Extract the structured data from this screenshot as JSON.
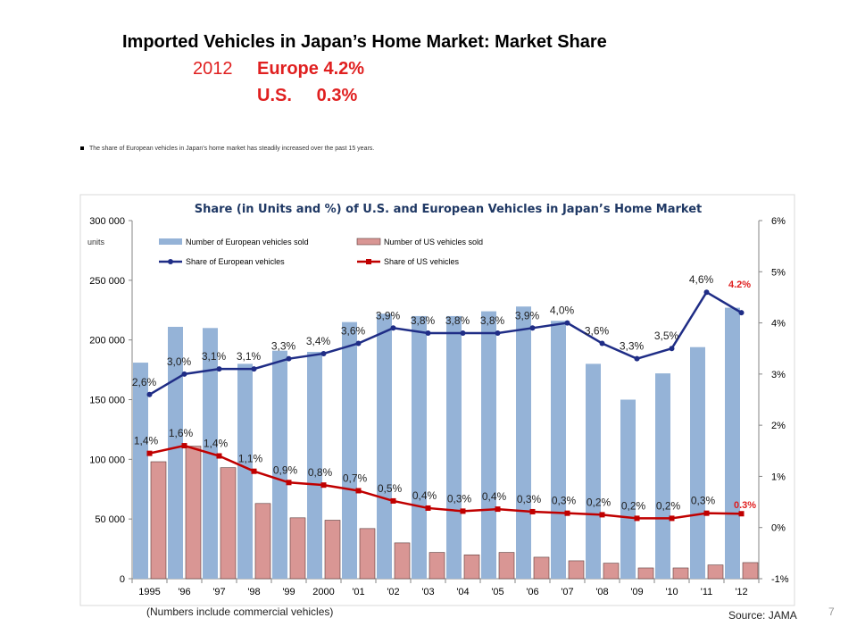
{
  "slide": {
    "title": "Imported Vehicles in Japan’s Home Market: Market Share",
    "headline_year": "2012",
    "headline_europe": "Europe 4.2%",
    "headline_us": "U.S.     0.3%",
    "bullet": "The share of European vehicles in Japan's home market has steadily increased over the past 15 years.",
    "note": "(Numbers include commercial vehicles)",
    "source": "Source: JAMA",
    "page_number": "7"
  },
  "colors": {
    "eu_bar": "#95b3d7",
    "us_bar": "#d99694",
    "eu_line": "#1f2d86",
    "us_line": "#c00000",
    "headline": "#e02020"
  },
  "chart_data": {
    "type": "bar",
    "title": "Share (in Units and %) of U.S. and European Vehicles in Japan’s Home Market",
    "y_unit_label": "units",
    "categories": [
      "1995",
      "'96",
      "'97",
      "'98",
      "'99",
      "2000",
      "'01",
      "'02",
      "'03",
      "'04",
      "'05",
      "'06",
      "'07",
      "'08",
      "'09",
      "'10",
      "'11",
      "'12"
    ],
    "ylim_left": [
      0,
      300000
    ],
    "yticks_left": [
      "0",
      "50 000",
      "100 000",
      "150 000",
      "200 000",
      "250 000",
      "300 000"
    ],
    "ylim_right": [
      -1,
      6
    ],
    "yticks_right": [
      "-1%",
      "0%",
      "1%",
      "2%",
      "3%",
      "4%",
      "5%",
      "6%"
    ],
    "legend_position": "top-left",
    "series": [
      {
        "name": "Number of European vehicles sold",
        "kind": "bar",
        "axis": "left",
        "values": [
          181000,
          211000,
          210000,
          180000,
          191000,
          190000,
          215000,
          222000,
          220000,
          220000,
          224000,
          228000,
          216000,
          180000,
          150000,
          172000,
          194000,
          227000
        ]
      },
      {
        "name": "Number of  US vehicles sold",
        "kind": "bar",
        "axis": "left",
        "values": [
          98000,
          111000,
          93000,
          63000,
          51000,
          49000,
          42000,
          30000,
          22000,
          20000,
          22000,
          18000,
          15000,
          13000,
          9000,
          9000,
          11500,
          13500
        ]
      },
      {
        "name": "Share of  European vehicles",
        "kind": "line",
        "axis": "right",
        "values": [
          2.6,
          3.0,
          3.1,
          3.1,
          3.3,
          3.4,
          3.6,
          3.9,
          3.8,
          3.8,
          3.8,
          3.9,
          4.0,
          3.6,
          3.3,
          3.5,
          4.6,
          4.2
        ],
        "labels": [
          "2,6%",
          "3,0%",
          "3,1%",
          "3,1%",
          "3,3%",
          "3,4%",
          "3,6%",
          "3,9%",
          "3,8%",
          "3,8%",
          "3,8%",
          "3,9%",
          "4,0%",
          "3,6%",
          "3,3%",
          "3,5%",
          "4,6%",
          "4.2%"
        ]
      },
      {
        "name": "Share of US vehicles",
        "kind": "line",
        "axis": "right",
        "values": [
          1.45,
          1.6,
          1.4,
          1.1,
          0.88,
          0.83,
          0.72,
          0.52,
          0.38,
          0.32,
          0.36,
          0.31,
          0.28,
          0.25,
          0.18,
          0.18,
          0.28,
          0.27
        ],
        "labels": [
          "1,4%",
          "1,6%",
          "1,4%",
          "1,1%",
          "0,9%",
          "0,8%",
          "0,7%",
          "0,5%",
          "0,4%",
          "0,3%",
          "0,4%",
          "0,3%",
          "0,3%",
          "0,2%",
          "0,2%",
          "0,2%",
          "0,3%",
          "0.3%"
        ]
      }
    ]
  }
}
